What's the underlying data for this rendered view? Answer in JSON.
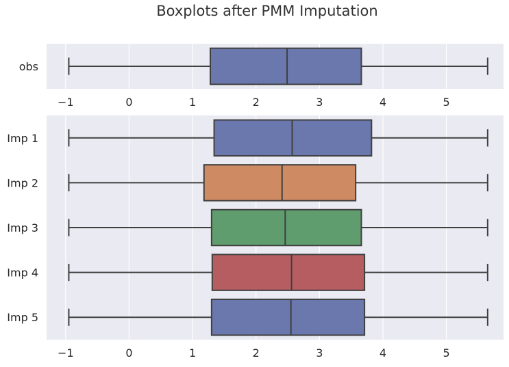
{
  "chart_data": {
    "type": "boxplot",
    "title": "Boxplots after PMM Imputation",
    "xlim": [
      -1.3,
      5.9
    ],
    "xticks": [
      -1,
      0,
      1,
      2,
      3,
      4,
      5
    ],
    "xtick_labels": [
      "−1",
      "0",
      "1",
      "2",
      "3",
      "4",
      "5"
    ],
    "grid": true,
    "panels": [
      {
        "name": "observed",
        "boxes": [
          {
            "label": "obs",
            "min": -0.95,
            "q1": 1.28,
            "median": 2.49,
            "q3": 3.66,
            "max": 5.65,
            "color": "#6b78ad"
          }
        ]
      },
      {
        "name": "imputed",
        "boxes": [
          {
            "label": "Imp 1",
            "min": -0.95,
            "q1": 1.34,
            "median": 2.57,
            "q3": 3.82,
            "max": 5.65,
            "color": "#6b78ad"
          },
          {
            "label": "Imp 2",
            "min": -0.95,
            "q1": 1.18,
            "median": 2.41,
            "q3": 3.57,
            "max": 5.65,
            "color": "#cd8a63"
          },
          {
            "label": "Imp 3",
            "min": -0.95,
            "q1": 1.3,
            "median": 2.46,
            "q3": 3.66,
            "max": 5.65,
            "color": "#5f9d6e"
          },
          {
            "label": "Imp 4",
            "min": -0.95,
            "q1": 1.31,
            "median": 2.56,
            "q3": 3.71,
            "max": 5.65,
            "color": "#b55d61"
          },
          {
            "label": "Imp 5",
            "min": -0.95,
            "q1": 1.3,
            "median": 2.55,
            "q3": 3.71,
            "max": 5.65,
            "color": "#6b78ad"
          }
        ]
      }
    ]
  },
  "colors": {
    "axes_background": "#eaeaf2",
    "grid": "#ffffff",
    "line": "#3f3f3f"
  }
}
